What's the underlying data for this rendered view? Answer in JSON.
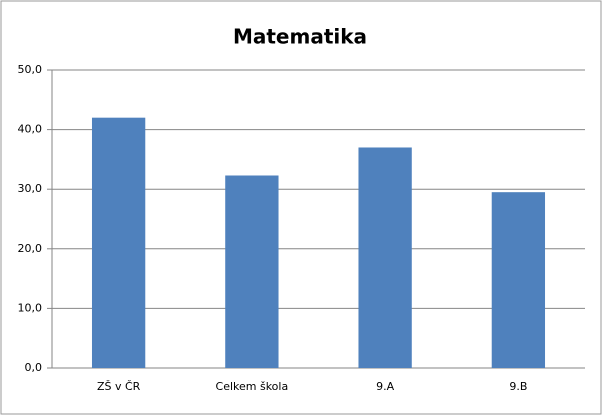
{
  "chart_data": {
    "type": "bar",
    "title": "Matematika",
    "categories": [
      "ZŠ v ČR",
      "Celkem škola",
      "9.A",
      "9.B"
    ],
    "values": [
      42.0,
      32.3,
      37.0,
      29.5
    ],
    "color": "#4f81bd",
    "ylim": [
      0,
      50
    ],
    "yticks": [
      {
        "value": 0,
        "label": "0,0"
      },
      {
        "value": 10,
        "label": "10,0"
      },
      {
        "value": 20,
        "label": "20,0"
      },
      {
        "value": 30,
        "label": "30,0"
      },
      {
        "value": 40,
        "label": "40,0"
      },
      {
        "value": 50,
        "label": "50,0"
      }
    ],
    "grid": true
  }
}
